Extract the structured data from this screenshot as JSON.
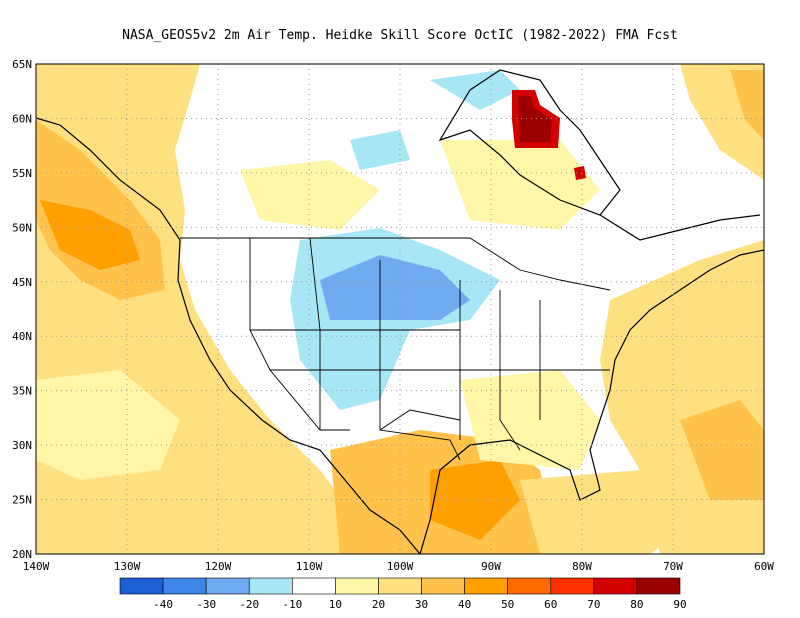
{
  "title": "NASA_GEOS5v2  2m Air Temp. Heidke Skill Score OctIC (1982-2022) FMA Fcst",
  "lat_labels": [
    "65N",
    "60N",
    "55N",
    "50N",
    "45N",
    "40N",
    "35N",
    "30N",
    "25N",
    "20N"
  ],
  "lon_labels": [
    "140W",
    "130W",
    "120W",
    "110W",
    "100W",
    "90W",
    "80W",
    "70W",
    "60W"
  ],
  "colorbar": {
    "labels": [
      "-40",
      "-30",
      "-20",
      "-10",
      "10",
      "20",
      "30",
      "40",
      "50",
      "60",
      "70",
      "80",
      "90"
    ],
    "colors": [
      "#1f5fd6",
      "#3f86e8",
      "#70abf2",
      "#a7e6f5",
      "#ffffff",
      "#fff6a8",
      "#ffe080",
      "#ffc24a",
      "#ff9f00",
      "#ff6a00",
      "#ff3000",
      "#d40000",
      "#9b0000"
    ]
  },
  "map_colors": {
    "light_orange": "#ffe080",
    "orange": "#ffc24a",
    "dark_orange": "#ff9f00",
    "pale_yellow": "#fff6a8",
    "light_blue": "#a7e6f5",
    "blue": "#70abf2",
    "dark_red": "#9b0000",
    "red": "#d40000"
  }
}
